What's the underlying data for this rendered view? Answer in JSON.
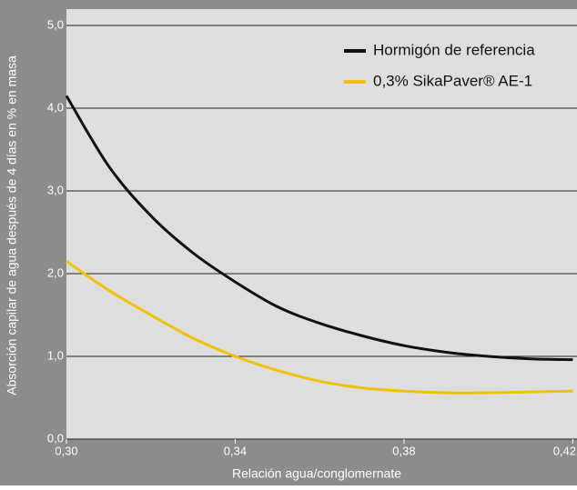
{
  "chart_data": {
    "type": "line",
    "y_label": "Absorción capilar de agua después de 4 días en % en masa",
    "x_label": "Relación agua/conglomernate",
    "x": [
      0.3,
      0.31,
      0.32,
      0.33,
      0.34,
      0.35,
      0.36,
      0.37,
      0.38,
      0.39,
      0.4,
      0.41,
      0.42
    ],
    "series": [
      {
        "name": "Hormigón de referencia",
        "color": "#111111",
        "values": [
          4.15,
          3.3,
          2.7,
          2.25,
          1.9,
          1.6,
          1.4,
          1.25,
          1.13,
          1.05,
          1.0,
          0.97,
          0.96
        ]
      },
      {
        "name": "0,3% SikaPaver® AE-1",
        "color": "#f2c200",
        "values": [
          2.15,
          1.8,
          1.5,
          1.22,
          1.0,
          0.83,
          0.7,
          0.62,
          0.58,
          0.56,
          0.56,
          0.57,
          0.58
        ]
      }
    ],
    "xlim": [
      0.3,
      0.421
    ],
    "ylim": [
      0,
      5
    ],
    "xticks": [
      {
        "value": 0.3,
        "label": "0,30"
      },
      {
        "value": 0.34,
        "label": "0,34"
      },
      {
        "value": 0.38,
        "label": "0,38"
      },
      {
        "value": 0.42,
        "label": "0,42"
      }
    ],
    "yticks": [
      {
        "value": 0,
        "label": "0,0"
      },
      {
        "value": 1,
        "label": "1,0"
      },
      {
        "value": 2,
        "label": "2,0"
      },
      {
        "value": 3,
        "label": "3,0"
      },
      {
        "value": 4,
        "label": "4,0"
      },
      {
        "value": 5,
        "label": "5,0"
      }
    ],
    "grid": true,
    "legend": "top-right"
  }
}
